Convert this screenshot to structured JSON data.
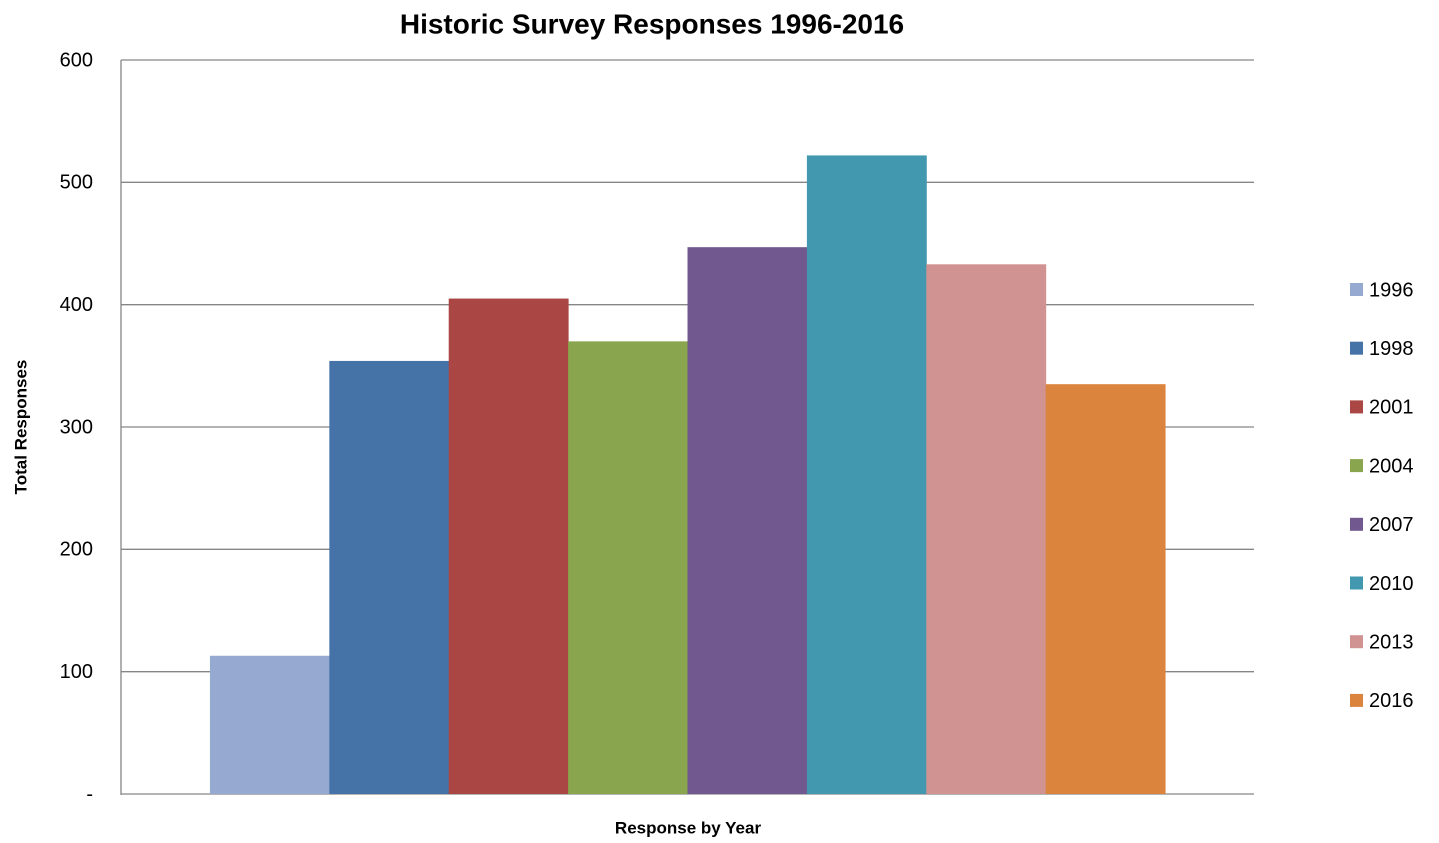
{
  "chart_data": {
    "type": "bar",
    "title": "Historic Survey Responses 1996-2016",
    "x_label": "Response by Year",
    "y_label": "Total Responses",
    "categories": [
      null
    ],
    "series": [
      {
        "name": "1996",
        "color": "#95a9d1",
        "values": [
          113
        ]
      },
      {
        "name": "1998",
        "color": "#4673a7",
        "values": [
          354
        ]
      },
      {
        "name": "2001",
        "color": "#aa4644",
        "values": [
          405
        ]
      },
      {
        "name": "2004",
        "color": "#89a54e",
        "values": [
          370
        ]
      },
      {
        "name": "2007",
        "color": "#71588f",
        "values": [
          447
        ]
      },
      {
        "name": "2010",
        "color": "#4298af",
        "values": [
          522
        ]
      },
      {
        "name": "2013",
        "color": "#d19392",
        "values": [
          433
        ]
      },
      {
        "name": "2016",
        "color": "#db843d",
        "values": [
          335
        ]
      }
    ],
    "ylim": [
      0,
      600
    ],
    "yticks": [
      {
        "value": 0,
        "label": "-"
      },
      100,
      200,
      300,
      400,
      500,
      600
    ],
    "grid": true,
    "legend": "right"
  }
}
